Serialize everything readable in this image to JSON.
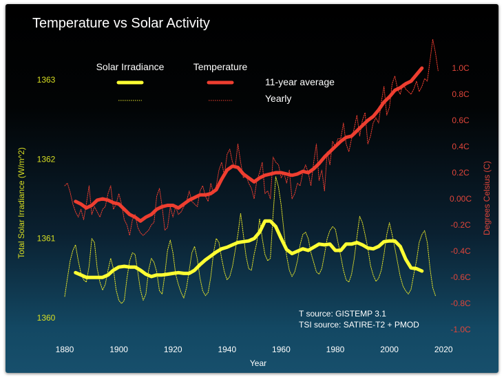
{
  "chart_data": {
    "type": "line",
    "title": "Temperature vs Solar Activity",
    "xlabel": "Year",
    "ylabel_left": "Total Solar Irradiance (W/m^2)",
    "ylabel_right": "Degrees Celsius (C)",
    "xlim": [
      1875,
      2020
    ],
    "ylim_left": [
      1359.7,
      1363.3
    ],
    "ylim_right": [
      -1.0,
      1.0
    ],
    "x_ticks": [
      "1880",
      "1900",
      "1920",
      "1940",
      "1960",
      "1980",
      "2000",
      "2020"
    ],
    "x_tick_values": [
      1880,
      1900,
      1920,
      1940,
      1960,
      1980,
      2000,
      2020
    ],
    "left_ticks": [
      "1360",
      "1361",
      "1362",
      "1363"
    ],
    "left_tick_values": [
      1360,
      1361,
      1362,
      1363
    ],
    "right_ticks": [
      "1.0C",
      "0.8C",
      "0.6C",
      "0.4C",
      "0.2C",
      "0.00C",
      "-0.2C",
      "-0.4C",
      "-0.6C",
      "-0.8C",
      "-1.0C"
    ],
    "right_tick_values": [
      1.0,
      0.8,
      0.6,
      0.4,
      0.2,
      0.0,
      -0.2,
      -0.4,
      -0.6,
      -0.8,
      -1.0
    ],
    "legend": {
      "col_solar": "Solar Irradiance",
      "col_temp": "Temperature",
      "row_avg": "11-year average",
      "row_yearly": "Yearly"
    },
    "sources": [
      "T source: GISTEMP 3.1",
      "TSI source: SATIRE-T2 + PMOD"
    ],
    "colors": {
      "solar": "#ffff33",
      "temp": "#ee3e30",
      "axis_left": "#d8df22",
      "axis_right": "#e0453a",
      "text": "#ffffff"
    },
    "series": [
      {
        "name": "Temperature 11-year average",
        "axis": "right",
        "x": [
          1884,
          1886,
          1888,
          1890,
          1892,
          1894,
          1896,
          1898,
          1900,
          1902,
          1904,
          1906,
          1908,
          1910,
          1912,
          1914,
          1916,
          1918,
          1920,
          1922,
          1924,
          1926,
          1928,
          1930,
          1932,
          1934,
          1936,
          1938,
          1940,
          1942,
          1944,
          1946,
          1948,
          1950,
          1952,
          1954,
          1956,
          1958,
          1960,
          1962,
          1964,
          1966,
          1968,
          1970,
          1972,
          1974,
          1976,
          1978,
          1980,
          1982,
          1984,
          1986,
          1988,
          1990,
          1992,
          1994,
          1996,
          1998,
          2000,
          2002,
          2004,
          2006,
          2008,
          2010,
          2012
        ],
        "y": [
          -0.02,
          -0.04,
          -0.07,
          -0.05,
          -0.01,
          0.0,
          -0.01,
          -0.03,
          -0.04,
          -0.08,
          -0.12,
          -0.14,
          -0.17,
          -0.14,
          -0.12,
          -0.08,
          -0.06,
          -0.05,
          -0.05,
          -0.07,
          -0.04,
          -0.01,
          0.01,
          0.03,
          0.03,
          0.04,
          0.07,
          0.15,
          0.22,
          0.25,
          0.24,
          0.19,
          0.16,
          0.13,
          0.16,
          0.18,
          0.19,
          0.2,
          0.2,
          0.19,
          0.18,
          0.19,
          0.21,
          0.2,
          0.23,
          0.27,
          0.32,
          0.36,
          0.4,
          0.44,
          0.47,
          0.48,
          0.52,
          0.56,
          0.6,
          0.63,
          0.68,
          0.74,
          0.78,
          0.83,
          0.85,
          0.88,
          0.9,
          0.95,
          1.0
        ]
      },
      {
        "name": "Temperature yearly",
        "axis": "right",
        "x": [
          1880,
          1881,
          1882,
          1883,
          1884,
          1885,
          1886,
          1887,
          1888,
          1889,
          1890,
          1891,
          1892,
          1893,
          1894,
          1895,
          1896,
          1897,
          1898,
          1899,
          1900,
          1901,
          1902,
          1903,
          1904,
          1905,
          1906,
          1907,
          1908,
          1909,
          1910,
          1911,
          1912,
          1913,
          1914,
          1915,
          1916,
          1917,
          1918,
          1919,
          1920,
          1921,
          1922,
          1923,
          1924,
          1925,
          1926,
          1927,
          1928,
          1929,
          1930,
          1931,
          1932,
          1933,
          1934,
          1935,
          1936,
          1937,
          1938,
          1939,
          1940,
          1941,
          1942,
          1943,
          1944,
          1945,
          1946,
          1947,
          1948,
          1949,
          1950,
          1951,
          1952,
          1953,
          1954,
          1955,
          1956,
          1957,
          1958,
          1959,
          1960,
          1961,
          1962,
          1963,
          1964,
          1965,
          1966,
          1967,
          1968,
          1969,
          1970,
          1971,
          1972,
          1973,
          1974,
          1975,
          1976,
          1977,
          1978,
          1979,
          1980,
          1981,
          1982,
          1983,
          1984,
          1985,
          1986,
          1987,
          1988,
          1989,
          1990,
          1991,
          1992,
          1993,
          1994,
          1995,
          1996,
          1997,
          1998,
          1999,
          2000,
          2001,
          2002,
          2003,
          2004,
          2005,
          2006,
          2007,
          2008,
          2009,
          2010,
          2011,
          2012,
          2013,
          2014,
          2015,
          2016,
          2017,
          2018
        ],
        "y": [
          0.1,
          0.12,
          0.05,
          -0.04,
          -0.1,
          -0.14,
          -0.08,
          -0.16,
          -0.04,
          0.1,
          -0.12,
          -0.06,
          -0.1,
          -0.14,
          -0.08,
          -0.06,
          0.04,
          0.1,
          -0.08,
          -0.04,
          0.04,
          -0.04,
          -0.16,
          -0.2,
          -0.28,
          -0.16,
          -0.12,
          -0.22,
          -0.26,
          -0.28,
          -0.26,
          -0.24,
          -0.2,
          -0.18,
          0.02,
          0.08,
          -0.06,
          -0.24,
          -0.22,
          -0.06,
          -0.14,
          -0.06,
          -0.12,
          -0.1,
          -0.06,
          -0.02,
          0.06,
          -0.02,
          -0.04,
          -0.06,
          0.06,
          0.1,
          0.02,
          -0.02,
          0.12,
          0.04,
          0.1,
          0.22,
          0.28,
          0.18,
          0.34,
          0.38,
          0.28,
          0.24,
          0.42,
          0.28,
          0.16,
          0.18,
          0.12,
          0.08,
          0.0,
          0.14,
          0.2,
          0.28,
          0.04,
          0.06,
          0.0,
          0.32,
          0.28,
          0.26,
          0.16,
          0.2,
          0.12,
          0.22,
          0.0,
          0.04,
          0.12,
          0.1,
          0.2,
          0.26,
          0.2,
          0.1,
          0.28,
          0.42,
          0.14,
          0.22,
          0.06,
          0.36,
          0.26,
          0.44,
          0.4,
          0.46,
          0.46,
          0.58,
          0.42,
          0.36,
          0.46,
          0.54,
          0.64,
          0.48,
          0.6,
          0.66,
          0.42,
          0.48,
          0.58,
          0.62,
          0.58,
          0.74,
          0.86,
          0.64,
          0.7,
          0.88,
          0.94,
          0.84,
          0.8,
          0.88,
          0.84,
          0.82,
          0.8,
          0.84,
          0.9,
          0.82,
          0.86,
          0.92,
          0.9,
          1.06,
          1.22,
          1.12,
          0.98
        ]
      },
      {
        "name": "Solar Irradiance 11-year average",
        "axis": "left",
        "x": [
          1884,
          1886,
          1888,
          1890,
          1892,
          1894,
          1896,
          1898,
          1900,
          1902,
          1904,
          1906,
          1908,
          1910,
          1912,
          1914,
          1916,
          1918,
          1920,
          1922,
          1924,
          1926,
          1928,
          1930,
          1932,
          1934,
          1936,
          1938,
          1940,
          1942,
          1944,
          1946,
          1948,
          1950,
          1952,
          1954,
          1956,
          1958,
          1960,
          1962,
          1964,
          1966,
          1968,
          1970,
          1972,
          1974,
          1976,
          1978,
          1980,
          1982,
          1984,
          1986,
          1988,
          1990,
          1992,
          1994,
          1996,
          1998,
          2000,
          2002,
          2004,
          2006,
          2008,
          2010,
          2012
        ],
        "y": [
          1360.57,
          1360.54,
          1360.51,
          1360.51,
          1360.51,
          1360.51,
          1360.54,
          1360.6,
          1360.64,
          1360.65,
          1360.64,
          1360.64,
          1360.6,
          1360.55,
          1360.52,
          1360.54,
          1360.54,
          1360.55,
          1360.56,
          1360.57,
          1360.56,
          1360.56,
          1360.6,
          1360.67,
          1360.73,
          1360.78,
          1360.83,
          1360.87,
          1360.89,
          1360.92,
          1360.95,
          1360.96,
          1360.97,
          1361.0,
          1361.08,
          1361.22,
          1361.22,
          1361.15,
          1361.0,
          1360.86,
          1360.81,
          1360.84,
          1360.87,
          1360.85,
          1360.89,
          1360.93,
          1360.92,
          1360.93,
          1360.85,
          1360.85,
          1360.93,
          1360.93,
          1360.95,
          1360.92,
          1360.88,
          1360.87,
          1360.9,
          1360.96,
          1360.97,
          1360.97,
          1360.9,
          1360.74,
          1360.63,
          1360.62,
          1360.59
        ]
      },
      {
        "name": "Solar Irradiance yearly",
        "axis": "left",
        "x": [
          1880,
          1881,
          1882,
          1883,
          1884,
          1885,
          1886,
          1887,
          1888,
          1889,
          1890,
          1891,
          1892,
          1893,
          1894,
          1895,
          1896,
          1897,
          1898,
          1899,
          1900,
          1901,
          1902,
          1903,
          1904,
          1905,
          1906,
          1907,
          1908,
          1909,
          1910,
          1911,
          1912,
          1913,
          1914,
          1915,
          1916,
          1917,
          1918,
          1919,
          1920,
          1921,
          1922,
          1923,
          1924,
          1925,
          1926,
          1927,
          1928,
          1929,
          1930,
          1931,
          1932,
          1933,
          1934,
          1935,
          1936,
          1937,
          1938,
          1939,
          1940,
          1941,
          1942,
          1943,
          1944,
          1945,
          1946,
          1947,
          1948,
          1949,
          1950,
          1951,
          1952,
          1953,
          1954,
          1955,
          1956,
          1957,
          1958,
          1959,
          1960,
          1961,
          1962,
          1963,
          1964,
          1965,
          1966,
          1967,
          1968,
          1969,
          1970,
          1971,
          1972,
          1973,
          1974,
          1975,
          1976,
          1977,
          1978,
          1979,
          1980,
          1981,
          1982,
          1983,
          1984,
          1985,
          1986,
          1987,
          1988,
          1989,
          1990,
          1991,
          1992,
          1993,
          1994,
          1995,
          1996,
          1997,
          1998,
          1999,
          2000,
          2001,
          2002,
          2003,
          2004,
          2005,
          2006,
          2007,
          2008,
          2009,
          2010,
          2011,
          2012,
          2013,
          2014,
          2015,
          2016,
          2017
        ],
        "y": [
          1360.27,
          1360.5,
          1360.72,
          1360.85,
          1360.92,
          1360.72,
          1360.56,
          1360.48,
          1360.45,
          1360.65,
          1361.0,
          1360.95,
          1360.62,
          1360.45,
          1360.35,
          1360.42,
          1360.6,
          1360.75,
          1360.62,
          1360.35,
          1360.22,
          1360.18,
          1360.22,
          1360.5,
          1360.72,
          1360.82,
          1360.8,
          1360.58,
          1360.35,
          1360.22,
          1360.3,
          1360.6,
          1360.75,
          1360.7,
          1360.58,
          1360.34,
          1360.3,
          1360.55,
          1360.85,
          1360.98,
          1360.82,
          1360.55,
          1360.42,
          1360.32,
          1360.25,
          1360.38,
          1360.6,
          1360.82,
          1360.9,
          1360.74,
          1360.5,
          1360.34,
          1360.28,
          1360.32,
          1360.52,
          1360.82,
          1361.0,
          1360.95,
          1360.75,
          1360.58,
          1360.48,
          1360.52,
          1360.65,
          1360.85,
          1361.05,
          1361.32,
          1361.05,
          1360.78,
          1360.62,
          1360.6,
          1360.8,
          1360.95,
          1361.25,
          1361.0,
          1360.8,
          1360.72,
          1360.75,
          1361.3,
          1361.78,
          1361.65,
          1361.42,
          1361.1,
          1360.78,
          1360.6,
          1360.52,
          1360.58,
          1360.72,
          1360.92,
          1361.05,
          1361.08,
          1361.0,
          1360.82,
          1360.7,
          1360.58,
          1360.55,
          1360.62,
          1360.8,
          1361.0,
          1361.1,
          1361.15,
          1361.12,
          1360.95,
          1360.78,
          1360.6,
          1360.48,
          1360.45,
          1360.55,
          1360.75,
          1361.02,
          1361.28,
          1361.2,
          1361.05,
          1360.88,
          1360.66,
          1360.54,
          1360.46,
          1360.5,
          1360.6,
          1360.8,
          1361.05,
          1361.2,
          1361.05,
          1360.88,
          1360.7,
          1360.52,
          1360.4,
          1360.34,
          1360.3,
          1360.36,
          1360.55,
          1360.72,
          1360.95,
          1361.05,
          1361.1,
          1360.95,
          1360.62,
          1360.38,
          1360.28
        ]
      }
    ]
  }
}
